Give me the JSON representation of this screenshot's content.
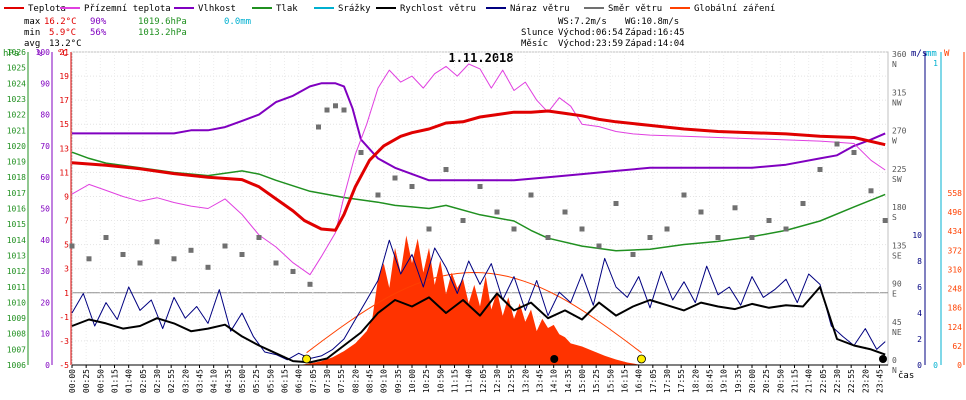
{
  "chart_data": {
    "type": "line",
    "title": "1.11.2018",
    "legend": [
      {
        "name": "Teplota",
        "color": "#e00000"
      },
      {
        "name": "Přízemní teplota",
        "color": "#e040e0"
      },
      {
        "name": "Vlhkost",
        "color": "#8000c0"
      },
      {
        "name": "Tlak",
        "color": "#209020"
      },
      {
        "name": "Srážky",
        "color": "#00b0d0"
      },
      {
        "name": "Rychlost větru",
        "color": "#000000"
      },
      {
        "name": "Náraz větru",
        "color": "#000080"
      },
      {
        "name": "Směr větru",
        "color": "#707070"
      },
      {
        "name": "Globální záření",
        "color": "#ff4000"
      }
    ],
    "stats": {
      "max_label": "max",
      "max_temp": "16.2°C",
      "max_hum": "90%",
      "max_press": "1019.6hPa",
      "max_rain": "0.0mm",
      "min_label": "min",
      "min_temp": "5.9°C",
      "min_hum": "56%",
      "min_press": "1013.2hPa",
      "avg_label": "avg",
      "avg_temp": "13.2°C"
    },
    "info": {
      "ws": "WS:7.2m/s",
      "wg": "WG:10.8m/s",
      "sun_label": "Slunce",
      "sun_rise": "Východ:06:54",
      "sun_set": "Západ:16:45",
      "moon_label": "Měsíc",
      "moon_rise": "Východ:23:59",
      "moon_set": "Západ:14:04"
    },
    "axis_units": {
      "hpa": "hPa",
      "pct": "%",
      "temp": "°C",
      "ms": "m/s",
      "mm": "mm",
      "w": "W",
      "time": "čas"
    },
    "hpa_ticks": [
      1006,
      1007,
      1008,
      1009,
      1010,
      1011,
      1012,
      1013,
      1014,
      1015,
      1016,
      1017,
      1018,
      1019,
      1020,
      1021,
      1022,
      1023,
      1024,
      1025,
      1026
    ],
    "pct_ticks": [
      0,
      10,
      20,
      30,
      40,
      50,
      60,
      70,
      80,
      90,
      100
    ],
    "temp_ticks": [
      -5,
      -3,
      -1,
      1,
      3,
      5,
      7,
      9,
      11,
      13,
      15,
      17,
      19,
      21
    ],
    "dir_ticks": [
      {
        "value": 0,
        "num": "0",
        "lab": "N"
      },
      {
        "value": 45,
        "num": "45",
        "lab": "NE"
      },
      {
        "value": 90,
        "num": "90",
        "lab": "E"
      },
      {
        "value": 135,
        "num": "135",
        "lab": "SE"
      },
      {
        "value": 180,
        "num": "180",
        "lab": "S"
      },
      {
        "value": 225,
        "num": "225",
        "lab": "SW"
      },
      {
        "value": 270,
        "num": "270",
        "lab": "W"
      },
      {
        "value": 315,
        "num": "315",
        "lab": "NW"
      },
      {
        "value": 360,
        "num": "360",
        "lab": "N"
      }
    ],
    "ms_ticks": [
      0,
      2,
      4,
      6,
      8,
      10
    ],
    "mm_ticks": [
      0,
      1
    ],
    "w_ticks": [
      0,
      62,
      124,
      186,
      248,
      310,
      372,
      434,
      496,
      558
    ],
    "time_ticks": [
      "00:00",
      "00:25",
      "00:50",
      "01:15",
      "01:40",
      "02:05",
      "02:30",
      "02:55",
      "03:20",
      "03:45",
      "04:10",
      "04:35",
      "05:00",
      "05:25",
      "05:50",
      "06:15",
      "06:40",
      "07:05",
      "07:30",
      "07:55",
      "08:20",
      "08:45",
      "09:10",
      "09:35",
      "10:00",
      "10:25",
      "10:50",
      "11:15",
      "11:40",
      "12:05",
      "12:30",
      "12:55",
      "13:20",
      "13:45",
      "14:10",
      "14:35",
      "15:00",
      "15:25",
      "15:50",
      "16:15",
      "16:40",
      "17:05",
      "17:30",
      "17:55",
      "18:20",
      "18:45",
      "19:10",
      "19:35",
      "20:00",
      "20:25",
      "20:50",
      "21:15",
      "21:40",
      "22:05",
      "22:30",
      "22:55",
      "23:20",
      "23:45"
    ],
    "series": [
      {
        "key": "temperature",
        "unit": "°C",
        "x": [
          "00:00",
          "01:00",
          "02:00",
          "03:00",
          "04:00",
          "05:00",
          "05:30",
          "06:00",
          "06:30",
          "06:50",
          "07:20",
          "07:45",
          "08:00",
          "08:20",
          "08:45",
          "09:10",
          "09:40",
          "10:00",
          "10:30",
          "11:00",
          "11:30",
          "12:00",
          "12:30",
          "13:00",
          "13:30",
          "14:00",
          "14:30",
          "15:00",
          "15:30",
          "16:00",
          "17:00",
          "18:00",
          "19:00",
          "20:00",
          "21:00",
          "22:00",
          "23:00",
          "23:55"
        ],
        "values": [
          11.8,
          11.6,
          11.3,
          10.9,
          10.6,
          10.4,
          9.8,
          8.8,
          7.8,
          7.0,
          6.3,
          6.2,
          7.5,
          9.8,
          12.0,
          13.2,
          14.0,
          14.3,
          14.6,
          15.1,
          15.2,
          15.6,
          15.8,
          16.0,
          16.0,
          16.1,
          15.9,
          15.7,
          15.4,
          15.2,
          14.9,
          14.6,
          14.4,
          14.3,
          14.2,
          14.0,
          13.9,
          13.3
        ]
      },
      {
        "key": "ground_temperature",
        "unit": "°C",
        "x": [
          "00:00",
          "00:30",
          "01:00",
          "01:30",
          "02:00",
          "02:30",
          "03:00",
          "03:30",
          "04:00",
          "04:30",
          "05:00",
          "05:30",
          "06:00",
          "06:30",
          "07:00",
          "07:20",
          "07:45",
          "08:00",
          "08:20",
          "08:40",
          "09:00",
          "09:20",
          "09:40",
          "10:00",
          "10:20",
          "10:40",
          "11:00",
          "11:20",
          "11:40",
          "12:00",
          "12:20",
          "12:40",
          "13:00",
          "13:20",
          "13:40",
          "14:00",
          "14:20",
          "14:40",
          "15:00",
          "15:30",
          "16:00",
          "16:30",
          "17:00",
          "18:00",
          "19:00",
          "20:00",
          "21:00",
          "22:00",
          "22:30",
          "23:00",
          "23:30",
          "23:55"
        ],
        "values": [
          9.2,
          10.0,
          9.5,
          9.0,
          8.6,
          8.9,
          8.5,
          8.2,
          8.0,
          8.8,
          7.5,
          5.8,
          4.8,
          3.5,
          2.5,
          4.0,
          6.0,
          9.0,
          12.5,
          15.0,
          18.0,
          19.5,
          18.5,
          19.0,
          18.0,
          19.2,
          19.8,
          19.0,
          20.0,
          19.6,
          18.0,
          19.5,
          17.8,
          18.5,
          17.0,
          16.0,
          17.2,
          16.5,
          15.0,
          14.8,
          14.4,
          14.2,
          14.1,
          14.0,
          13.9,
          13.8,
          13.7,
          13.6,
          13.5,
          13.4,
          12.0,
          11.2
        ]
      },
      {
        "key": "humidity",
        "unit": "%",
        "x": [
          "00:00",
          "01:00",
          "02:00",
          "03:00",
          "03:30",
          "04:00",
          "04:30",
          "05:00",
          "05:30",
          "06:00",
          "06:30",
          "07:00",
          "07:20",
          "07:45",
          "08:00",
          "08:15",
          "08:30",
          "09:00",
          "09:30",
          "10:00",
          "10:30",
          "11:00",
          "12:00",
          "13:00",
          "14:00",
          "15:00",
          "16:00",
          "17:00",
          "18:00",
          "19:00",
          "20:00",
          "21:00",
          "22:00",
          "22:30",
          "23:00",
          "23:30",
          "23:55"
        ],
        "values": [
          74,
          74,
          74,
          74,
          75,
          75,
          76,
          78,
          80,
          84,
          86,
          89,
          90,
          90,
          89,
          82,
          72,
          66,
          63,
          61,
          59,
          59,
          59,
          59,
          60,
          61,
          62,
          63,
          63,
          63,
          63,
          64,
          66,
          67,
          70,
          72,
          74
        ]
      },
      {
        "key": "pressure",
        "unit": "hPa",
        "x": [
          "00:00",
          "00:30",
          "01:00",
          "02:00",
          "03:00",
          "04:00",
          "05:00",
          "05:30",
          "06:00",
          "07:00",
          "08:00",
          "09:00",
          "09:30",
          "10:00",
          "10:30",
          "11:00",
          "12:00",
          "13:00",
          "13:30",
          "14:00",
          "15:00",
          "16:00",
          "17:00",
          "18:00",
          "19:00",
          "20:00",
          "21:00",
          "22:00",
          "23:00",
          "23:55"
        ],
        "values": [
          1019.6,
          1019.2,
          1018.9,
          1018.6,
          1018.3,
          1018.1,
          1018.4,
          1018.2,
          1017.8,
          1017.1,
          1016.7,
          1016.4,
          1016.2,
          1016.1,
          1016.0,
          1016.2,
          1015.6,
          1015.2,
          1014.6,
          1014.1,
          1013.6,
          1013.3,
          1013.4,
          1013.7,
          1013.9,
          1014.2,
          1014.6,
          1015.2,
          1016.1,
          1016.9
        ]
      },
      {
        "key": "wind_speed",
        "unit": "m/s",
        "x": [
          "00:00",
          "00:30",
          "01:00",
          "01:30",
          "02:00",
          "02:30",
          "03:00",
          "03:30",
          "04:00",
          "04:30",
          "05:00",
          "05:30",
          "06:00",
          "06:30",
          "07:00",
          "07:30",
          "08:00",
          "08:30",
          "09:00",
          "09:30",
          "10:00",
          "10:30",
          "11:00",
          "11:30",
          "12:00",
          "12:30",
          "13:00",
          "13:30",
          "14:00",
          "14:30",
          "15:00",
          "15:30",
          "16:00",
          "16:30",
          "17:00",
          "17:30",
          "18:00",
          "18:30",
          "19:00",
          "19:30",
          "20:00",
          "20:30",
          "21:00",
          "21:30",
          "22:00",
          "22:30",
          "23:00",
          "23:30",
          "23:55"
        ],
        "values": [
          3.0,
          3.5,
          3.2,
          2.8,
          3.0,
          3.6,
          3.2,
          2.6,
          2.8,
          3.1,
          2.2,
          1.5,
          0.9,
          0.3,
          0.2,
          0.5,
          1.5,
          2.5,
          4.0,
          5.0,
          4.5,
          5.2,
          4.0,
          5.0,
          3.8,
          5.5,
          4.2,
          4.8,
          3.6,
          4.2,
          3.5,
          4.8,
          3.8,
          4.5,
          5.0,
          4.6,
          4.2,
          4.8,
          4.5,
          4.3,
          4.7,
          4.4,
          4.6,
          4.5,
          6.0,
          2.0,
          1.5,
          1.2,
          0.8
        ]
      },
      {
        "key": "wind_gust",
        "unit": "m/s",
        "x": [
          "00:00",
          "00:20",
          "00:40",
          "01:00",
          "01:20",
          "01:40",
          "02:00",
          "02:20",
          "02:40",
          "03:00",
          "03:20",
          "03:40",
          "04:00",
          "04:20",
          "04:40",
          "05:00",
          "05:20",
          "05:40",
          "06:00",
          "06:20",
          "06:40",
          "07:00",
          "07:20",
          "07:40",
          "08:00",
          "08:20",
          "08:40",
          "09:00",
          "09:20",
          "09:40",
          "10:00",
          "10:20",
          "10:40",
          "11:00",
          "11:20",
          "11:40",
          "12:00",
          "12:20",
          "12:40",
          "13:00",
          "13:20",
          "13:40",
          "14:00",
          "14:20",
          "14:40",
          "15:00",
          "15:20",
          "15:40",
          "16:00",
          "16:20",
          "16:40",
          "17:00",
          "17:20",
          "17:40",
          "18:00",
          "18:20",
          "18:40",
          "19:00",
          "19:20",
          "19:40",
          "20:00",
          "20:20",
          "20:40",
          "21:00",
          "21:20",
          "21:40",
          "22:00",
          "22:20",
          "22:40",
          "23:00",
          "23:20",
          "23:40",
          "23:55"
        ],
        "values": [
          4.0,
          5.5,
          3.0,
          4.8,
          3.5,
          6.0,
          4.2,
          5.0,
          2.8,
          5.2,
          3.6,
          4.5,
          3.2,
          5.8,
          2.6,
          4.0,
          2.2,
          1.0,
          0.8,
          0.4,
          0.9,
          0.5,
          0.7,
          1.2,
          2.0,
          3.5,
          5.0,
          6.5,
          9.6,
          7.0,
          8.5,
          6.0,
          9.0,
          7.5,
          5.5,
          8.0,
          6.2,
          7.8,
          5.0,
          6.8,
          4.2,
          6.5,
          3.8,
          5.6,
          4.8,
          7.0,
          4.6,
          8.2,
          6.0,
          5.2,
          6.8,
          4.4,
          7.2,
          5.0,
          6.4,
          4.8,
          7.6,
          5.4,
          6.0,
          4.6,
          6.8,
          5.2,
          5.8,
          6.6,
          4.8,
          7.0,
          6.2,
          3.0,
          2.2,
          1.5,
          2.8,
          1.2,
          1.8
        ]
      },
      {
        "key": "global_radiation",
        "unit": "W",
        "x": [
          "06:40",
          "07:00",
          "07:20",
          "07:40",
          "08:00",
          "08:20",
          "08:40",
          "08:50",
          "09:00",
          "09:10",
          "09:20",
          "09:30",
          "09:40",
          "09:50",
          "10:00",
          "10:10",
          "10:20",
          "10:30",
          "10:40",
          "10:50",
          "11:00",
          "11:10",
          "11:20",
          "11:30",
          "11:40",
          "11:50",
          "12:00",
          "12:10",
          "12:20",
          "12:30",
          "12:40",
          "12:50",
          "13:00",
          "13:10",
          "13:20",
          "13:30",
          "13:40",
          "13:50",
          "14:00",
          "14:10",
          "14:20",
          "14:30",
          "14:40",
          "15:00",
          "15:20",
          "15:40",
          "16:00",
          "16:20",
          "16:45"
        ],
        "values": [
          0,
          5,
          12,
          25,
          45,
          70,
          110,
          150,
          280,
          330,
          250,
          380,
          300,
          420,
          330,
          410,
          300,
          380,
          260,
          340,
          230,
          300,
          250,
          280,
          200,
          260,
          190,
          290,
          180,
          240,
          160,
          220,
          150,
          200,
          140,
          180,
          110,
          150,
          120,
          130,
          100,
          90,
          70,
          60,
          45,
          30,
          18,
          8,
          0
        ]
      },
      {
        "key": "wind_direction",
        "unit": "°",
        "x": [
          "00:00",
          "00:30",
          "01:00",
          "01:30",
          "02:00",
          "02:30",
          "03:00",
          "03:30",
          "04:00",
          "04:30",
          "05:00",
          "05:30",
          "06:00",
          "06:30",
          "07:00",
          "07:15",
          "07:30",
          "07:45",
          "08:00",
          "08:30",
          "09:00",
          "09:30",
          "10:00",
          "10:30",
          "11:00",
          "11:30",
          "12:00",
          "12:30",
          "13:00",
          "13:30",
          "14:00",
          "14:30",
          "15:00",
          "15:30",
          "16:00",
          "16:30",
          "17:00",
          "17:30",
          "18:00",
          "18:30",
          "19:00",
          "19:30",
          "20:00",
          "20:30",
          "21:00",
          "21:30",
          "22:00",
          "22:30",
          "23:00",
          "23:30",
          "23:55"
        ],
        "values": [
          140,
          125,
          150,
          130,
          120,
          145,
          125,
          135,
          115,
          140,
          130,
          150,
          120,
          110,
          95,
          280,
          300,
          305,
          300,
          250,
          200,
          220,
          210,
          160,
          230,
          170,
          210,
          180,
          160,
          200,
          150,
          180,
          160,
          140,
          190,
          130,
          150,
          160,
          200,
          180,
          150,
          185,
          150,
          170,
          160,
          190,
          230,
          260,
          250,
          205,
          170
        ]
      }
    ]
  }
}
